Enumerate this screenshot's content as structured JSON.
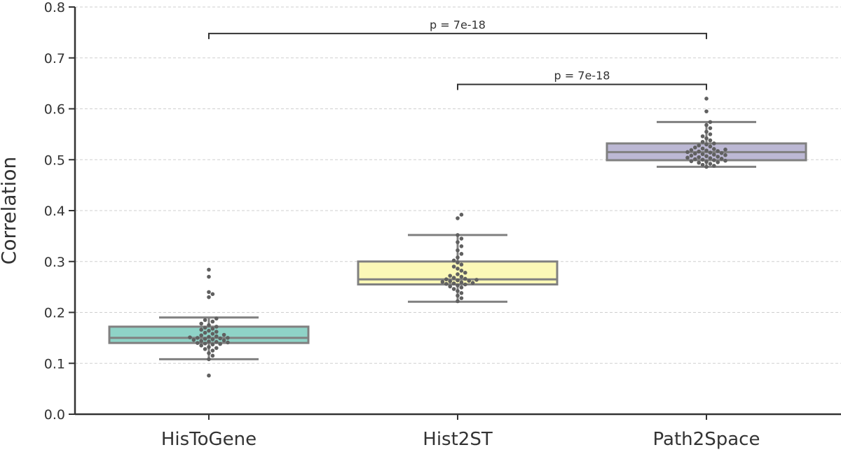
{
  "chart_data": {
    "type": "box",
    "ylabel": "Correlation",
    "xlabel": "",
    "ylim": [
      0.0,
      0.8
    ],
    "yticks": [
      "0.0",
      "0.1",
      "0.2",
      "0.3",
      "0.4",
      "0.5",
      "0.6",
      "0.7",
      "0.8"
    ],
    "grid": "horizontal-dashed",
    "categories": [
      "HisToGene",
      "Hist2ST",
      "Path2Space"
    ],
    "series": [
      {
        "category": "HisToGene",
        "color": "#8fd3c7",
        "q1": 0.14,
        "median": 0.15,
        "q3": 0.172,
        "whisker_low": 0.108,
        "whisker_high": 0.19,
        "points": [
          0.076,
          0.108,
          0.115,
          0.12,
          0.125,
          0.128,
          0.13,
          0.132,
          0.135,
          0.137,
          0.138,
          0.139,
          0.14,
          0.141,
          0.142,
          0.143,
          0.144,
          0.145,
          0.146,
          0.147,
          0.148,
          0.149,
          0.15,
          0.15,
          0.151,
          0.152,
          0.153,
          0.155,
          0.156,
          0.158,
          0.16,
          0.162,
          0.164,
          0.166,
          0.168,
          0.17,
          0.172,
          0.175,
          0.178,
          0.182,
          0.185,
          0.188,
          0.23,
          0.236,
          0.24,
          0.27,
          0.284
        ]
      },
      {
        "category": "Hist2ST",
        "color": "#fbf8b7",
        "q1": 0.255,
        "median": 0.265,
        "q3": 0.3,
        "whisker_low": 0.221,
        "whisker_high": 0.352,
        "points": [
          0.222,
          0.228,
          0.233,
          0.238,
          0.242,
          0.246,
          0.249,
          0.251,
          0.253,
          0.255,
          0.256,
          0.257,
          0.258,
          0.259,
          0.26,
          0.261,
          0.262,
          0.263,
          0.264,
          0.265,
          0.266,
          0.268,
          0.27,
          0.272,
          0.275,
          0.278,
          0.282,
          0.286,
          0.29,
          0.294,
          0.298,
          0.302,
          0.308,
          0.315,
          0.322,
          0.33,
          0.338,
          0.345,
          0.352,
          0.385,
          0.392
        ]
      },
      {
        "category": "Path2Space",
        "color": "#bcb8d4",
        "q1": 0.499,
        "median": 0.515,
        "q3": 0.532,
        "whisker_low": 0.486,
        "whisker_high": 0.574,
        "points": [
          0.486,
          0.488,
          0.49,
          0.492,
          0.494,
          0.495,
          0.496,
          0.497,
          0.498,
          0.499,
          0.5,
          0.501,
          0.502,
          0.503,
          0.504,
          0.505,
          0.506,
          0.507,
          0.508,
          0.509,
          0.51,
          0.511,
          0.512,
          0.513,
          0.514,
          0.515,
          0.516,
          0.517,
          0.518,
          0.519,
          0.52,
          0.521,
          0.522,
          0.524,
          0.526,
          0.528,
          0.53,
          0.532,
          0.535,
          0.538,
          0.542,
          0.546,
          0.55,
          0.555,
          0.562,
          0.568,
          0.574,
          0.595,
          0.62
        ]
      }
    ],
    "annotations": [
      {
        "from": "HisToGene",
        "to": "Path2Space",
        "label": "p = 7e-18",
        "y": 0.748
      },
      {
        "from": "Hist2ST",
        "to": "Path2Space",
        "label": "p = 7e-18",
        "y": 0.648
      }
    ]
  }
}
